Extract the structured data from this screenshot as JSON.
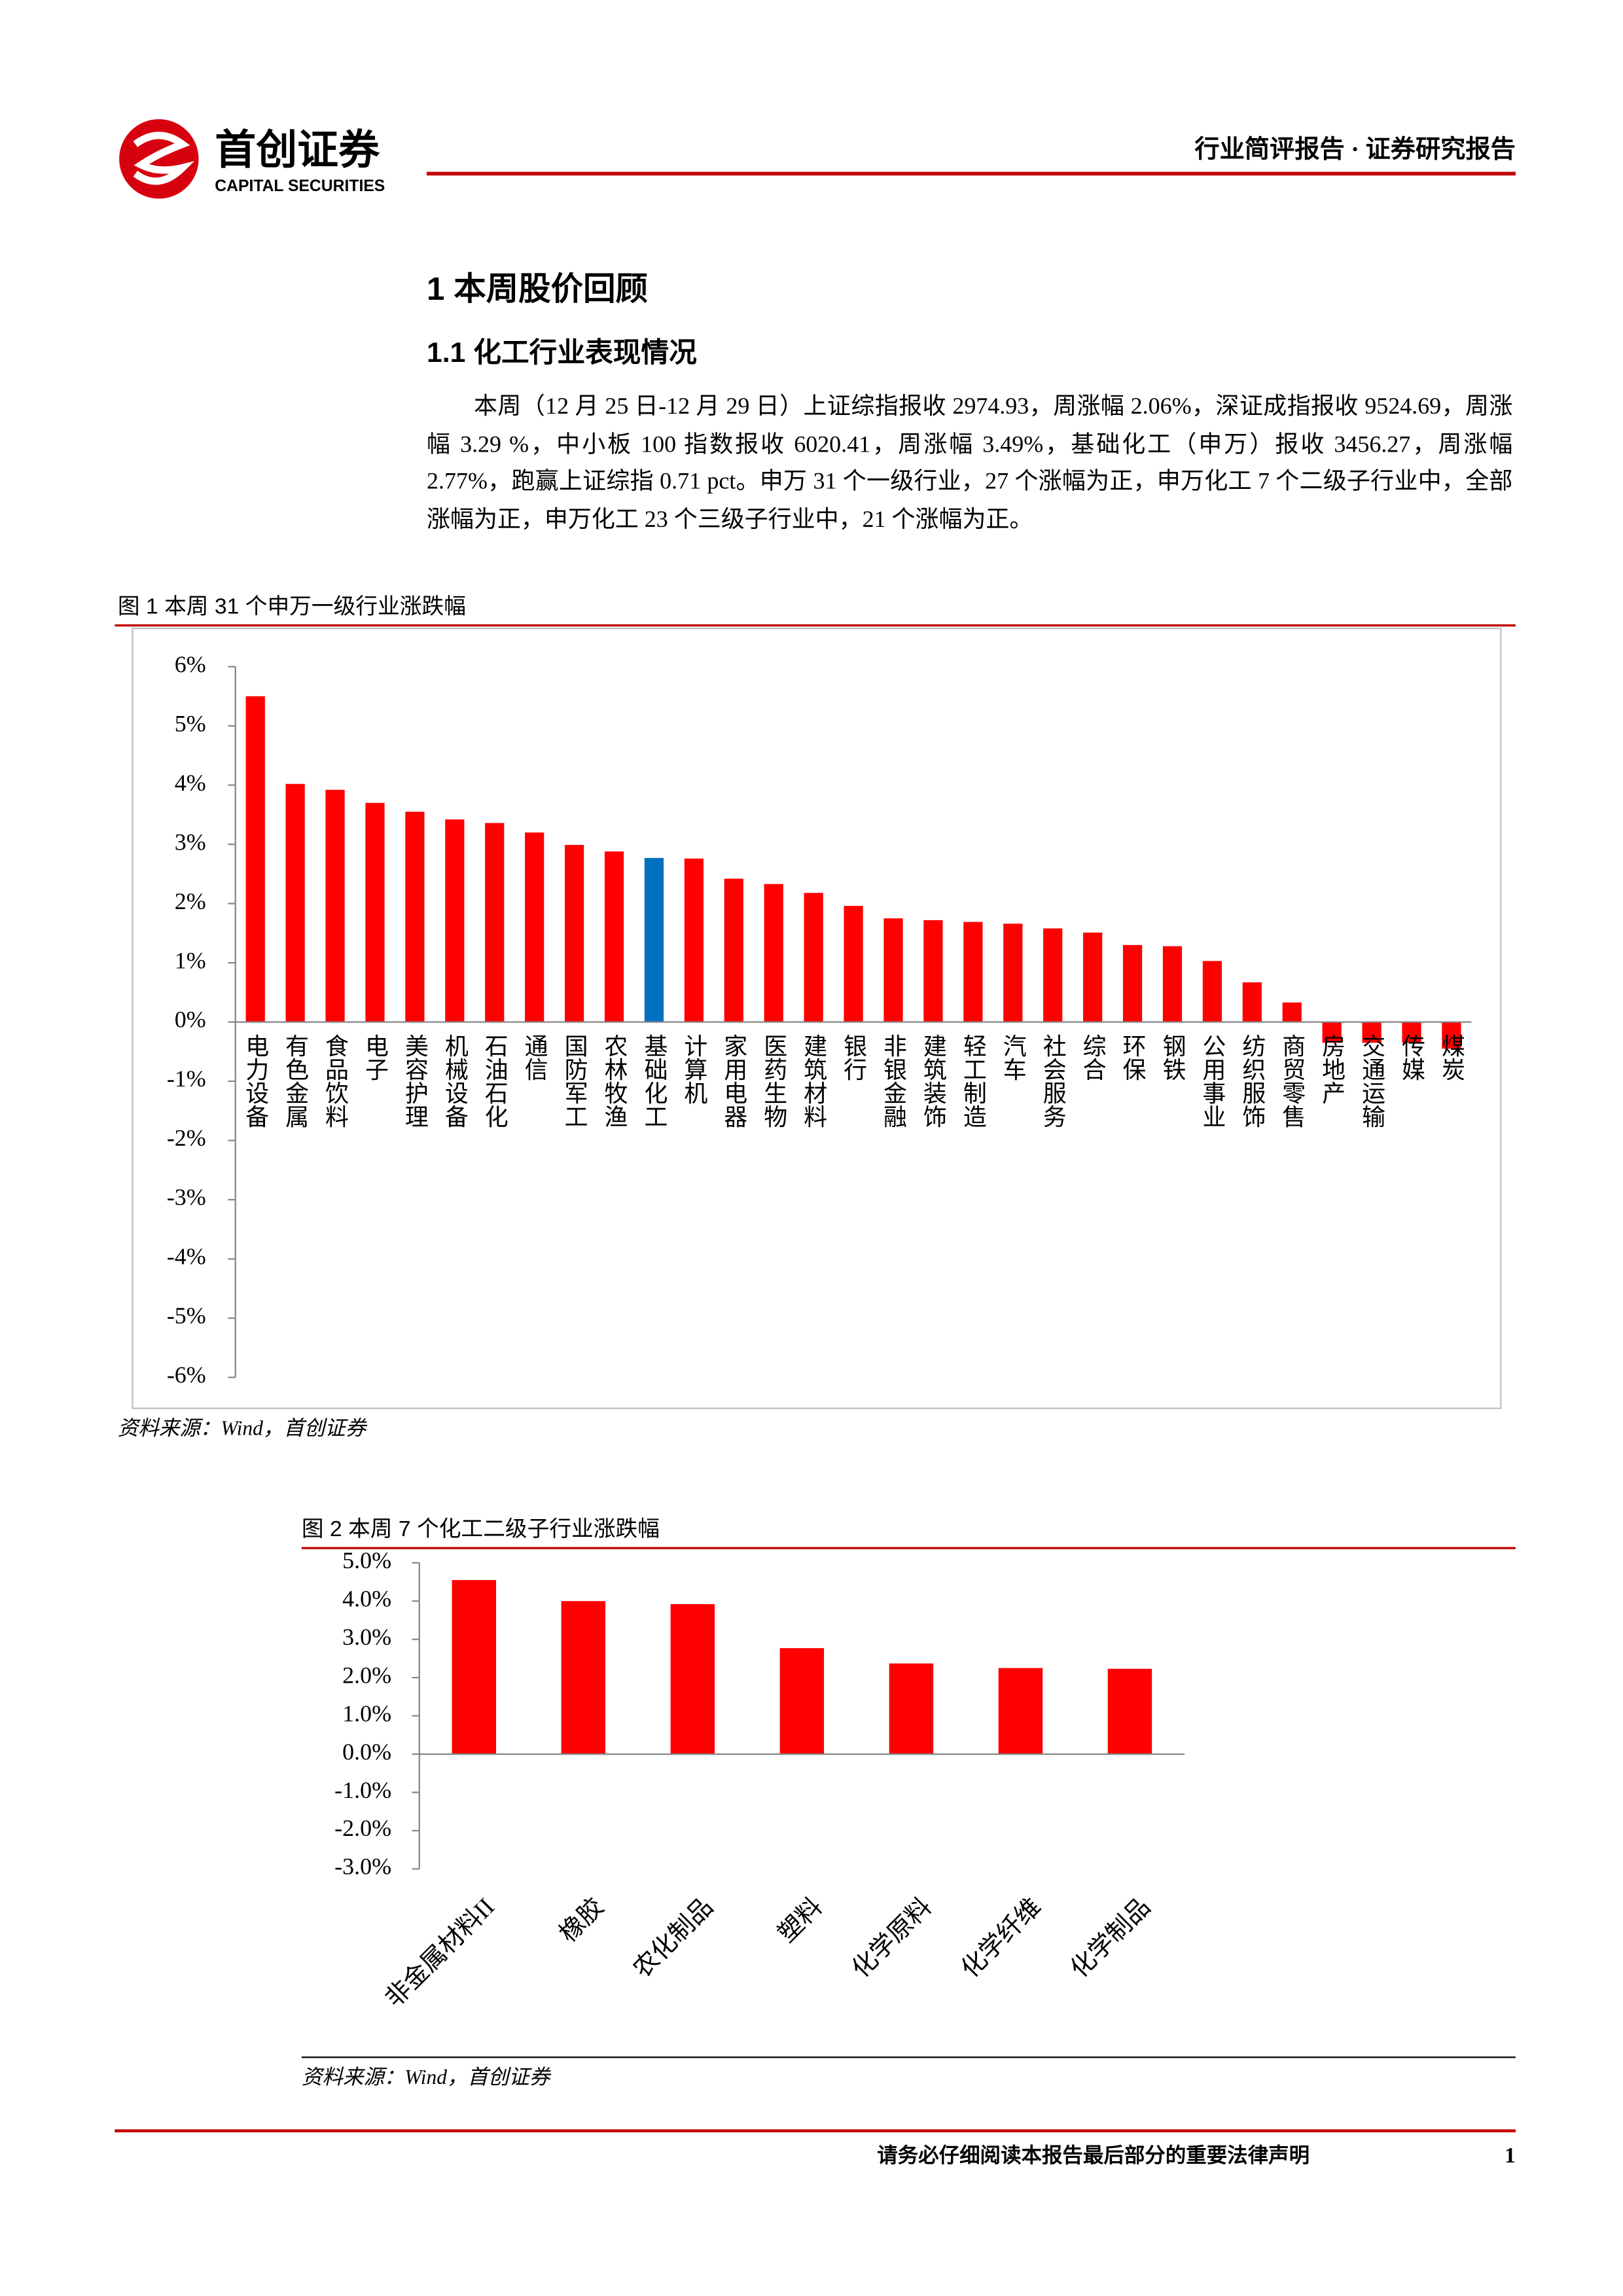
{
  "header": {
    "logo_cn": "首创证券",
    "logo_en": "CAPITAL SECURITIES",
    "report_type": "行业简评报告 · 证券研究报告"
  },
  "sections": [
    {
      "heading": "1 本周股价回顾"
    },
    {
      "heading": "1.1 化工行业表现情况",
      "paragraph": "本周（12 月 25 日-12 月 29 日）上证综指报收 2974.93，周涨幅 2.06%，深证成指报收 9524.69，周涨幅 3.29 %，中小板 100 指数报收 6020.41，周涨幅 3.49%，基础化工（申万）报收 3456.27，周涨幅 2.77%，跑赢上证综指 0.71 pct。申万 31 个一级行业，27 个涨幅为正，申万化工 7 个二级子行业中，全部涨幅为正，申万化工 23 个三级子行业中，21 个涨幅为正。"
    }
  ],
  "chart_data": [
    {
      "type": "bar",
      "title": "图 1  本周 31 个申万一级行业涨跌幅",
      "source": "资料来源：Wind，首创证券",
      "categories": [
        "电力设备",
        "有色金属",
        "食品饮料",
        "电子",
        "美容护理",
        "机械设备",
        "石油石化",
        "通信",
        "国防军工",
        "农林牧渔",
        "基础化工",
        "计算机",
        "家用电器",
        "医药生物",
        "建筑材料",
        "银行",
        "非银金融",
        "建筑装饰",
        "轻工制造",
        "汽车",
        "社会服务",
        "综合",
        "环保",
        "钢铁",
        "公用事业",
        "纺织服饰",
        "商贸零售",
        "房地产",
        "交通运输",
        "传媒",
        "煤炭"
      ],
      "values": [
        5.5,
        4.02,
        3.92,
        3.7,
        3.55,
        3.42,
        3.36,
        3.2,
        2.99,
        2.88,
        2.77,
        2.76,
        2.42,
        2.33,
        2.18,
        1.96,
        1.75,
        1.72,
        1.69,
        1.66,
        1.58,
        1.51,
        1.3,
        1.28,
        1.03,
        0.67,
        0.33,
        -0.35,
        -0.35,
        -0.35,
        -0.45
      ],
      "colors": [
        "#ff0000",
        "#ff0000",
        "#ff0000",
        "#ff0000",
        "#ff0000",
        "#ff0000",
        "#ff0000",
        "#ff0000",
        "#ff0000",
        "#ff0000",
        "#0070c0",
        "#ff0000",
        "#ff0000",
        "#ff0000",
        "#ff0000",
        "#ff0000",
        "#ff0000",
        "#ff0000",
        "#ff0000",
        "#ff0000",
        "#ff0000",
        "#ff0000",
        "#ff0000",
        "#ff0000",
        "#ff0000",
        "#ff0000",
        "#ff0000",
        "#ff0000",
        "#ff0000",
        "#ff0000",
        "#ff0000"
      ],
      "ylim": [
        -6,
        6
      ],
      "yticks": [
        {
          "value": 6,
          "label": "6%"
        },
        {
          "value": 5,
          "label": "5%"
        },
        {
          "value": 4,
          "label": "4%"
        },
        {
          "value": 3,
          "label": "3%"
        },
        {
          "value": 2,
          "label": "2%"
        },
        {
          "value": 1,
          "label": "1%"
        },
        {
          "value": 0,
          "label": "0%"
        },
        {
          "value": -1,
          "label": "-1%"
        },
        {
          "value": -2,
          "label": "-2%"
        },
        {
          "value": -3,
          "label": "-3%"
        },
        {
          "value": -4,
          "label": "-4%"
        },
        {
          "value": -5,
          "label": "-5%"
        },
        {
          "value": -6,
          "label": "-6%"
        }
      ]
    },
    {
      "type": "bar",
      "title": "图 2  本周 7 个化工二级子行业涨跌幅",
      "source": "资料来源：Wind，首创证券",
      "categories": [
        "非金属材料II",
        "橡胶",
        "农化制品",
        "塑料",
        "化学原料",
        "化学纤维",
        "化学制品"
      ],
      "values": [
        4.55,
        4.0,
        3.92,
        2.77,
        2.37,
        2.25,
        2.23
      ],
      "colors": [
        "#ff0000",
        "#ff0000",
        "#ff0000",
        "#ff0000",
        "#ff0000",
        "#ff0000",
        "#ff0000"
      ],
      "ylim": [
        -3,
        5
      ],
      "yticks": [
        {
          "value": 5,
          "label": "5.0%"
        },
        {
          "value": 4,
          "label": "4.0%"
        },
        {
          "value": 3,
          "label": "3.0%"
        },
        {
          "value": 2,
          "label": "2.0%"
        },
        {
          "value": 1,
          "label": "1.0%"
        },
        {
          "value": 0,
          "label": "0.0%"
        },
        {
          "value": -1,
          "label": "-1.0%"
        },
        {
          "value": -2,
          "label": "-2.0%"
        },
        {
          "value": -3,
          "label": "-3.0%"
        }
      ]
    }
  ],
  "footer": {
    "notice": "请务必仔细阅读本报告最后部分的重要法律声明",
    "page": "1"
  }
}
